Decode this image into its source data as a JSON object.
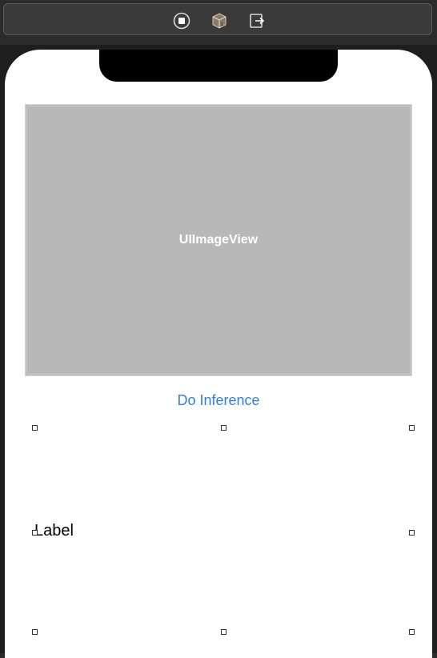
{
  "scene_dock": {
    "icons": [
      "stop-circle-icon",
      "cube-3d-icon",
      "exit-door-icon"
    ]
  },
  "image_view": {
    "label": "UIImageView",
    "background_color": "#b8b8b8"
  },
  "button": {
    "label": "Do Inference",
    "color": "#2f7fe0"
  },
  "label": {
    "text": "Label"
  }
}
